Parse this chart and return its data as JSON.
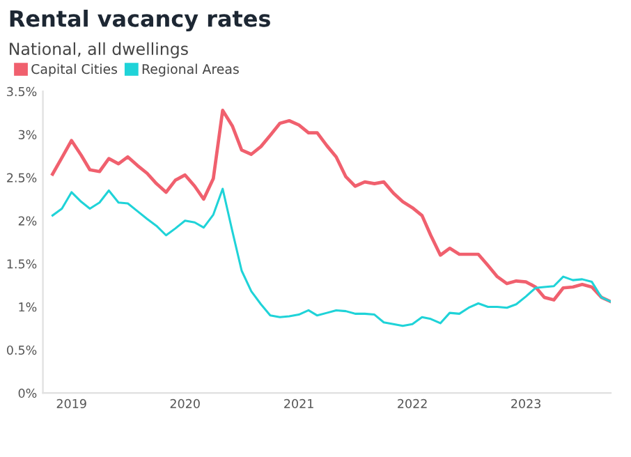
{
  "chart_data": {
    "type": "line",
    "title": "Rental vacancy rates",
    "subtitle": "National, all dwellings",
    "x": [
      "2018-11",
      "2018-12",
      "2019-01",
      "2019-02",
      "2019-03",
      "2019-04",
      "2019-05",
      "2019-06",
      "2019-07",
      "2019-08",
      "2019-09",
      "2019-10",
      "2019-11",
      "2019-12",
      "2020-01",
      "2020-02",
      "2020-03",
      "2020-04",
      "2020-05",
      "2020-06",
      "2020-07",
      "2020-08",
      "2020-09",
      "2020-10",
      "2020-11",
      "2020-12",
      "2021-01",
      "2021-02",
      "2021-03",
      "2021-04",
      "2021-05",
      "2021-06",
      "2021-07",
      "2021-08",
      "2021-09",
      "2021-10",
      "2021-11",
      "2021-12",
      "2022-01",
      "2022-02",
      "2022-03",
      "2022-04",
      "2022-05",
      "2022-06",
      "2022-07",
      "2022-08",
      "2022-09",
      "2022-10",
      "2022-11",
      "2022-12",
      "2023-01",
      "2023-02",
      "2023-03",
      "2023-04",
      "2023-05",
      "2023-06",
      "2023-07",
      "2023-08",
      "2023-09",
      "2023-10"
    ],
    "series": [
      {
        "name": "Capital Cities",
        "color": "#f0606e",
        "values": [
          2.54,
          2.73,
          2.93,
          2.76,
          2.59,
          2.57,
          2.72,
          2.66,
          2.74,
          2.64,
          2.55,
          2.43,
          2.33,
          2.47,
          2.53,
          2.4,
          2.25,
          2.49,
          3.28,
          3.1,
          2.82,
          2.77,
          2.86,
          2.99,
          3.13,
          3.16,
          3.11,
          3.02,
          3.02,
          2.87,
          2.74,
          2.51,
          2.4,
          2.45,
          2.43,
          2.45,
          2.32,
          2.22,
          2.15,
          2.06,
          1.83,
          1.6,
          1.68,
          1.61,
          1.61,
          1.61,
          1.48,
          1.35,
          1.27,
          1.3,
          1.29,
          1.23,
          1.11,
          1.08,
          1.22,
          1.23,
          1.26,
          1.23,
          1.11,
          1.06
        ]
      },
      {
        "name": "Regional Areas",
        "color": "#1fd3d8",
        "values": [
          2.06,
          2.14,
          2.33,
          2.22,
          2.14,
          2.21,
          2.35,
          2.21,
          2.2,
          2.11,
          2.02,
          1.94,
          1.83,
          1.91,
          2.0,
          1.98,
          1.92,
          2.07,
          2.37,
          1.88,
          1.42,
          1.18,
          1.03,
          0.9,
          0.88,
          0.89,
          0.91,
          0.96,
          0.9,
          0.93,
          0.96,
          0.95,
          0.92,
          0.92,
          0.91,
          0.82,
          0.8,
          0.78,
          0.8,
          0.88,
          0.86,
          0.81,
          0.93,
          0.92,
          0.99,
          1.04,
          1.0,
          1.0,
          0.99,
          1.03,
          1.12,
          1.22,
          1.23,
          1.24,
          1.35,
          1.31,
          1.32,
          1.29,
          1.11,
          1.06
        ]
      }
    ],
    "xlim": [
      "2018-10",
      "2023-10"
    ],
    "xticks": [
      "2019",
      "2020",
      "2021",
      "2022",
      "2023"
    ],
    "ylim": [
      0,
      3.5
    ],
    "yticks": [
      {
        "value": 0,
        "label": "0%"
      },
      {
        "value": 0.5,
        "label": "0.5%"
      },
      {
        "value": 1,
        "label": "1%"
      },
      {
        "value": 1.5,
        "label": "1.5%"
      },
      {
        "value": 2,
        "label": "2%"
      },
      {
        "value": 2.5,
        "label": "2.5%"
      },
      {
        "value": 3,
        "label": "3%"
      },
      {
        "value": 3.5,
        "label": "3.5%"
      }
    ],
    "legend": "top left",
    "grid": false
  }
}
